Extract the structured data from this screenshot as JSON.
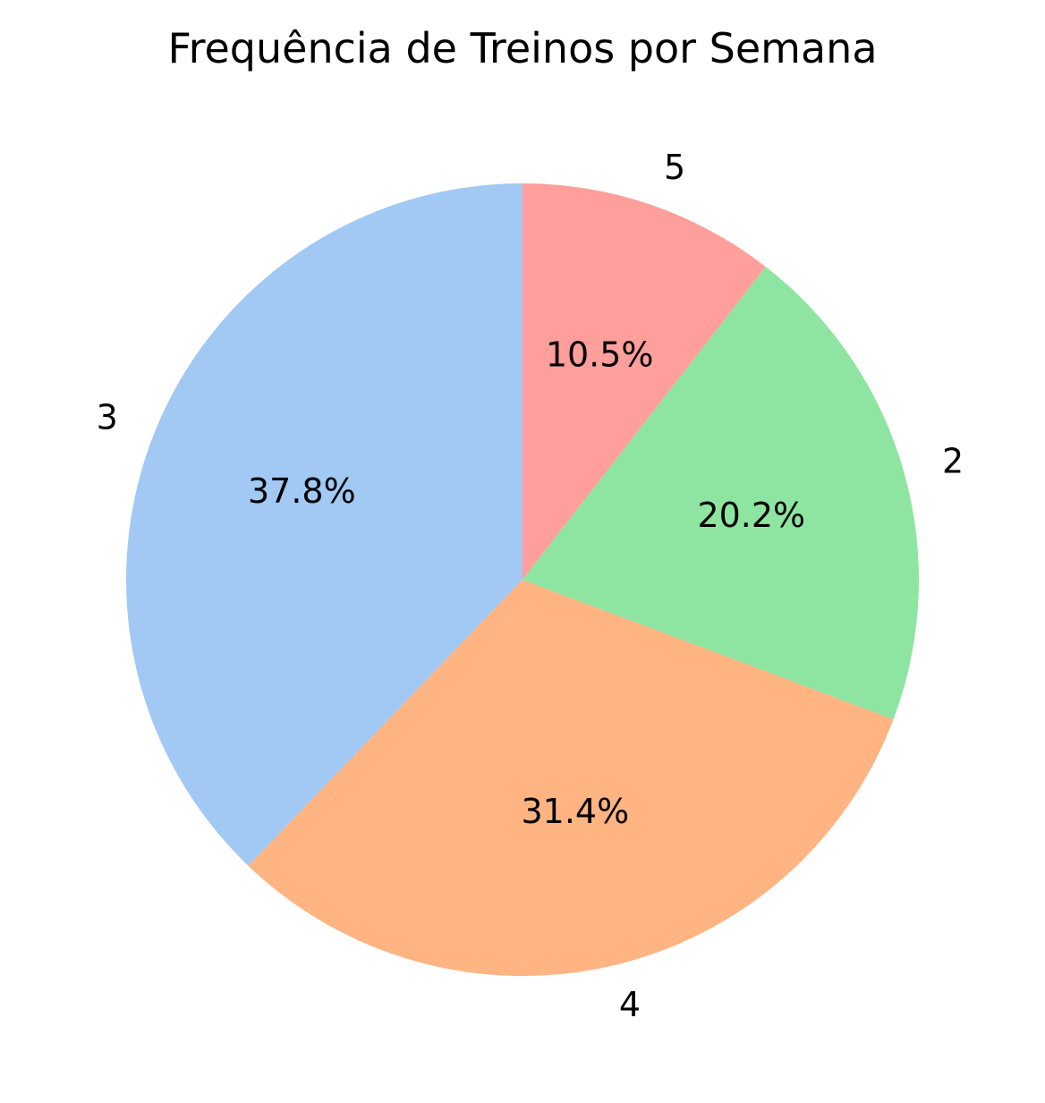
{
  "chart_data": {
    "type": "pie",
    "title": "Frequência de Treinos por Semana",
    "slices": [
      {
        "label": "3",
        "value": 37.8,
        "pct_label": "37.8%",
        "color": "#a1c9f4"
      },
      {
        "label": "4",
        "value": 31.4,
        "pct_label": "31.4%",
        "color": "#ffb482"
      },
      {
        "label": "2",
        "value": 20.2,
        "pct_label": "20.2%",
        "color": "#8de5a1"
      },
      {
        "label": "5",
        "value": 10.5,
        "pct_label": "10.5%",
        "color": "#ff9f9b"
      }
    ],
    "start_angle_deg": 90,
    "direction": "counterclockwise",
    "legend": "none"
  }
}
